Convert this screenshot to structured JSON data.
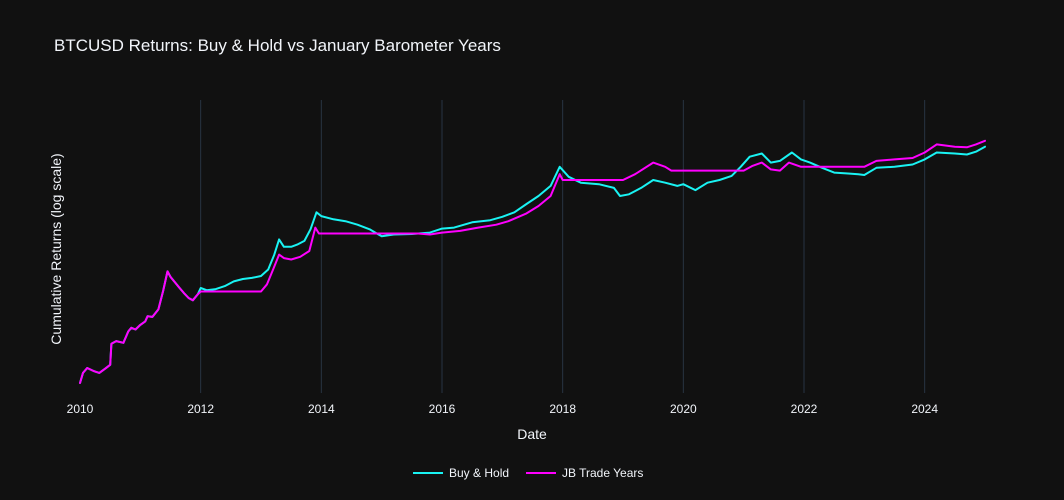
{
  "chart_data": {
    "type": "line",
    "title": "BTCUSD Returns: Buy & Hold vs January Barometer Years",
    "xlabel": "Date",
    "ylabel": "Cumulative Returns (log scale)",
    "y_scale": "log",
    "y_tick_labels_shown": false,
    "xlim": [
      2010.0,
      2025.0
    ],
    "ylim": [
      0.5,
      300000000
    ],
    "x_tick_labels": [
      "2010",
      "2012",
      "2014",
      "2016",
      "2018",
      "2020",
      "2022",
      "2024"
    ],
    "x_ticks": [
      2010,
      2012,
      2014,
      2016,
      2018,
      2020,
      2022,
      2024
    ],
    "grid": "vertical",
    "legend_position": "bottom-center",
    "series": [
      {
        "name": "Buy & Hold",
        "color": "#19f3f3",
        "points": [
          [
            2010.0,
            1.0
          ],
          [
            2010.05,
            2.0
          ],
          [
            2010.12,
            2.8
          ],
          [
            2010.22,
            2.3
          ],
          [
            2010.32,
            2.0
          ],
          [
            2010.42,
            2.7
          ],
          [
            2010.5,
            3.5
          ],
          [
            2010.52,
            15
          ],
          [
            2010.6,
            18
          ],
          [
            2010.72,
            16
          ],
          [
            2010.8,
            35
          ],
          [
            2010.85,
            45
          ],
          [
            2010.92,
            40
          ],
          [
            2011.0,
            55
          ],
          [
            2011.08,
            70
          ],
          [
            2011.12,
            100
          ],
          [
            2011.2,
            95
          ],
          [
            2011.3,
            160
          ],
          [
            2011.38,
            600
          ],
          [
            2011.45,
            2200
          ],
          [
            2011.5,
            1500
          ],
          [
            2011.58,
            1000
          ],
          [
            2011.65,
            700
          ],
          [
            2011.72,
            500
          ],
          [
            2011.8,
            350
          ],
          [
            2011.87,
            300
          ],
          [
            2011.95,
            450
          ],
          [
            2012.0,
            700
          ],
          [
            2012.1,
            600
          ],
          [
            2012.25,
            650
          ],
          [
            2012.4,
            800
          ],
          [
            2012.55,
            1100
          ],
          [
            2012.7,
            1300
          ],
          [
            2012.85,
            1400
          ],
          [
            2013.0,
            1600
          ],
          [
            2013.12,
            2500
          ],
          [
            2013.22,
            7000
          ],
          [
            2013.3,
            20000
          ],
          [
            2013.38,
            12000
          ],
          [
            2013.5,
            12000
          ],
          [
            2013.6,
            14000
          ],
          [
            2013.72,
            18000
          ],
          [
            2013.82,
            40000
          ],
          [
            2013.92,
            130000
          ],
          [
            2014.0,
            100000
          ],
          [
            2014.2,
            80000
          ],
          [
            2014.4,
            70000
          ],
          [
            2014.6,
            55000
          ],
          [
            2014.8,
            40000
          ],
          [
            2014.92,
            30000
          ],
          [
            2015.0,
            25000
          ],
          [
            2015.2,
            28000
          ],
          [
            2015.5,
            29000
          ],
          [
            2015.8,
            32000
          ],
          [
            2016.0,
            42000
          ],
          [
            2016.2,
            45000
          ],
          [
            2016.5,
            65000
          ],
          [
            2016.8,
            75000
          ],
          [
            2017.0,
            95000
          ],
          [
            2017.2,
            130000
          ],
          [
            2017.4,
            230000
          ],
          [
            2017.6,
            400000
          ],
          [
            2017.8,
            800000
          ],
          [
            2017.95,
            3000000
          ],
          [
            2018.1,
            1500000
          ],
          [
            2018.3,
            1000000
          ],
          [
            2018.6,
            900000
          ],
          [
            2018.85,
            700000
          ],
          [
            2018.95,
            400000
          ],
          [
            2019.1,
            450000
          ],
          [
            2019.3,
            700000
          ],
          [
            2019.5,
            1200000
          ],
          [
            2019.7,
            1000000
          ],
          [
            2019.9,
            800000
          ],
          [
            2020.0,
            900000
          ],
          [
            2020.2,
            600000
          ],
          [
            2020.4,
            1000000
          ],
          [
            2020.6,
            1200000
          ],
          [
            2020.8,
            1600000
          ],
          [
            2020.95,
            3000000
          ],
          [
            2021.1,
            6000000
          ],
          [
            2021.3,
            7500000
          ],
          [
            2021.45,
            4000000
          ],
          [
            2021.6,
            4500000
          ],
          [
            2021.8,
            8000000
          ],
          [
            2021.95,
            5000000
          ],
          [
            2022.1,
            4000000
          ],
          [
            2022.3,
            2800000
          ],
          [
            2022.5,
            2000000
          ],
          [
            2022.7,
            1900000
          ],
          [
            2022.9,
            1800000
          ],
          [
            2023.0,
            1700000
          ],
          [
            2023.2,
            2800000
          ],
          [
            2023.5,
            3000000
          ],
          [
            2023.8,
            3500000
          ],
          [
            2024.0,
            5000000
          ],
          [
            2024.2,
            8000000
          ],
          [
            2024.5,
            7500000
          ],
          [
            2024.7,
            7000000
          ],
          [
            2024.85,
            8500000
          ],
          [
            2025.0,
            12000000
          ]
        ]
      },
      {
        "name": "JB Trade Years",
        "color": "#ff00ff",
        "points": [
          [
            2010.0,
            1.0
          ],
          [
            2010.05,
            2.0
          ],
          [
            2010.12,
            2.8
          ],
          [
            2010.22,
            2.3
          ],
          [
            2010.32,
            2.0
          ],
          [
            2010.42,
            2.7
          ],
          [
            2010.5,
            3.5
          ],
          [
            2010.52,
            15
          ],
          [
            2010.6,
            18
          ],
          [
            2010.72,
            16
          ],
          [
            2010.8,
            35
          ],
          [
            2010.85,
            45
          ],
          [
            2010.92,
            40
          ],
          [
            2011.0,
            55
          ],
          [
            2011.08,
            70
          ],
          [
            2011.12,
            100
          ],
          [
            2011.2,
            95
          ],
          [
            2011.3,
            160
          ],
          [
            2011.38,
            600
          ],
          [
            2011.45,
            2200
          ],
          [
            2011.5,
            1500
          ],
          [
            2011.58,
            1000
          ],
          [
            2011.65,
            700
          ],
          [
            2011.72,
            500
          ],
          [
            2011.8,
            350
          ],
          [
            2011.87,
            300
          ],
          [
            2011.95,
            450
          ],
          [
            2012.0,
            550
          ],
          [
            2012.5,
            550
          ],
          [
            2013.0,
            550
          ],
          [
            2013.1,
            900
          ],
          [
            2013.2,
            2500
          ],
          [
            2013.3,
            7000
          ],
          [
            2013.38,
            5500
          ],
          [
            2013.5,
            5000
          ],
          [
            2013.65,
            6000
          ],
          [
            2013.8,
            9000
          ],
          [
            2013.9,
            45000
          ],
          [
            2013.96,
            30000
          ],
          [
            2014.0,
            30000
          ],
          [
            2015.0,
            30000
          ],
          [
            2015.3,
            30000
          ],
          [
            2015.6,
            30000
          ],
          [
            2015.8,
            28000
          ],
          [
            2016.0,
            32000
          ],
          [
            2016.3,
            36000
          ],
          [
            2016.6,
            45000
          ],
          [
            2016.9,
            55000
          ],
          [
            2017.1,
            70000
          ],
          [
            2017.4,
            120000
          ],
          [
            2017.6,
            200000
          ],
          [
            2017.8,
            400000
          ],
          [
            2017.95,
            1800000
          ],
          [
            2018.0,
            1200000
          ],
          [
            2018.5,
            1200000
          ],
          [
            2019.0,
            1200000
          ],
          [
            2019.2,
            1800000
          ],
          [
            2019.5,
            4000000
          ],
          [
            2019.7,
            3000000
          ],
          [
            2019.8,
            2300000
          ],
          [
            2020.0,
            2300000
          ],
          [
            2020.5,
            2300000
          ],
          [
            2021.0,
            2300000
          ],
          [
            2021.15,
            3200000
          ],
          [
            2021.3,
            4000000
          ],
          [
            2021.45,
            2500000
          ],
          [
            2021.6,
            2300000
          ],
          [
            2021.75,
            4000000
          ],
          [
            2021.95,
            3000000
          ],
          [
            2022.0,
            3000000
          ],
          [
            2022.5,
            3000000
          ],
          [
            2023.0,
            3000000
          ],
          [
            2023.2,
            4500000
          ],
          [
            2023.5,
            5000000
          ],
          [
            2023.8,
            5500000
          ],
          [
            2024.0,
            8000000
          ],
          [
            2024.2,
            14000000
          ],
          [
            2024.5,
            12000000
          ],
          [
            2024.7,
            11500000
          ],
          [
            2024.85,
            14000000
          ],
          [
            2025.0,
            18000000
          ]
        ]
      }
    ]
  }
}
